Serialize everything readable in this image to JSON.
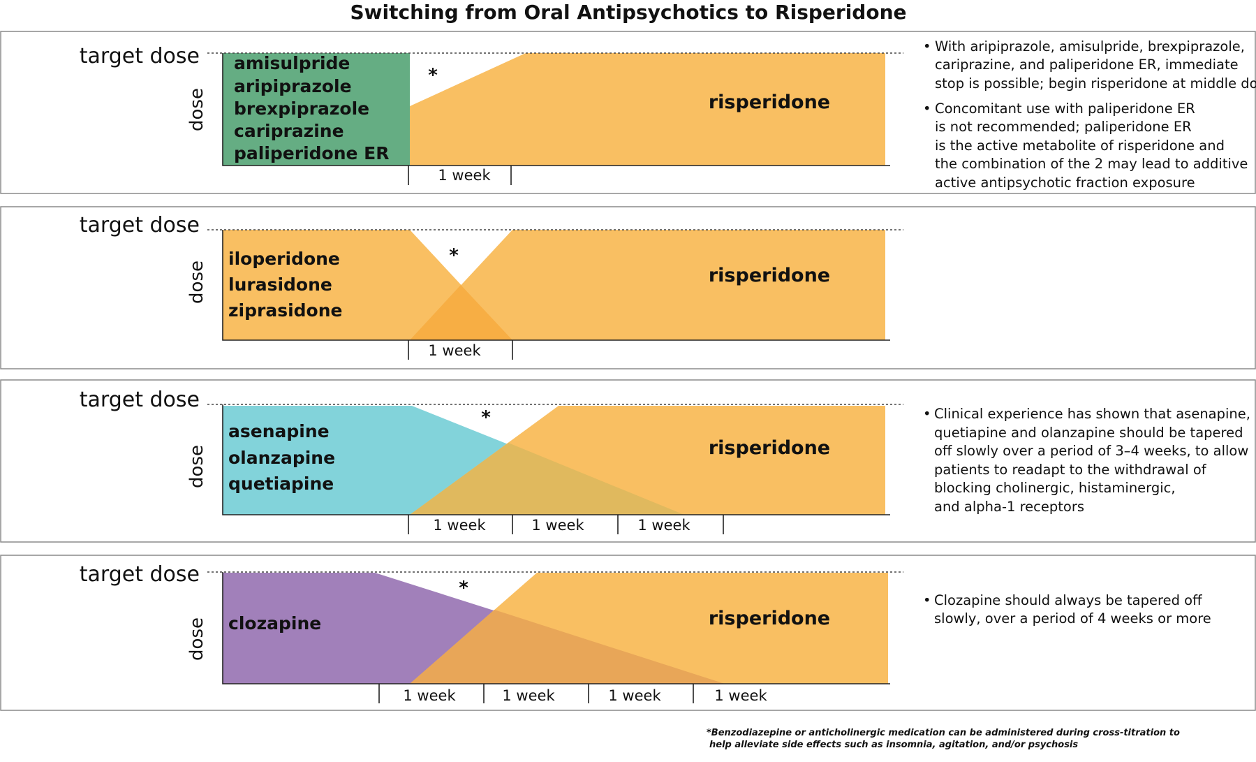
{
  "title": "Switching from Oral Antipsychotics to Risperidone",
  "axis_labels": {
    "target": "target dose",
    "dose": "dose"
  },
  "week_label": "1 week",
  "asterisk": "*",
  "colors": {
    "risperidone": "#F9BF62",
    "group1": "#65AD83",
    "group2": "#F9BF62",
    "group2_overlap": "#F7AE44",
    "group3": "#82D3DA",
    "group3_overlap": "#E0B95E",
    "group4": "#A180BA",
    "group4_overlap": "#E8A658"
  },
  "panels": [
    {
      "drugs": [
        "amisulpride",
        "aripiprazole",
        "brexpiprazole",
        "cariprazine",
        "paliperidone ER"
      ],
      "risperidone": "risperidone",
      "notes": [
        [
          "With aripiprazole, amisulpride, brexpiprazole,",
          "cariprazine, and paliperidone ER, immediate",
          "stop is possible; begin risperidone at middle dose"
        ],
        [
          "Concomitant use with paliperidone ER",
          "is not recommended; paliperidone ER",
          "is the active metabolite of risperidone and",
          "the combination of the 2 may lead to additive",
          "active antipsychotic fraction exposure"
        ]
      ]
    },
    {
      "drugs": [
        "iloperidone",
        "lurasidone",
        "ziprasidone"
      ],
      "risperidone": "risperidone",
      "notes": []
    },
    {
      "drugs": [
        "asenapine",
        "olanzapine",
        "quetiapine"
      ],
      "risperidone": "risperidone",
      "notes": [
        [
          "Clinical experience has shown that asenapine,",
          "quetiapine and olanzapine should be tapered",
          "off slowly over a period of 3–4 weeks, to allow",
          "patients to readapt to the withdrawal of",
          "blocking cholinergic, histaminergic,",
          "and alpha-1 receptors"
        ]
      ]
    },
    {
      "drugs": [
        "clozapine"
      ],
      "risperidone": "risperidone",
      "notes": [
        [
          "Clozapine should always be tapered off",
          "slowly, over a period of 4 weeks or more"
        ]
      ]
    }
  ],
  "footnote": [
    "*Benzodiazepine or anticholinergic medication can be administered during cross-titration to",
    "help alleviate side effects such as insomnia, agitation, and/or psychosis"
  ]
}
